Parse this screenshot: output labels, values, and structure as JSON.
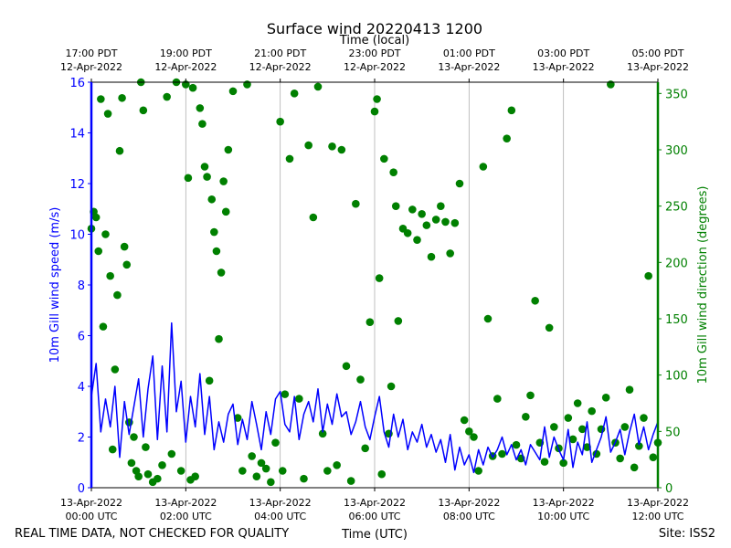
{
  "footer": {
    "left_note": "REAL TIME DATA, NOT CHECKED FOR QUALITY",
    "site": "Site: ISS2"
  },
  "colors": {
    "speed": "#0000ff",
    "direction": "#008000",
    "grid": "#b0b0b0",
    "axis": "#000000"
  },
  "chart_data": {
    "type": "line",
    "title": "Surface wind 20220413 1200",
    "xlabel": "Time (UTC)",
    "x2label": "Time (local)",
    "ylabel": "10m Gill wind speed (m/s)",
    "y2label": "10m Gill wind direction (degrees)",
    "xlim": [
      0,
      12
    ],
    "ylim": [
      0,
      16
    ],
    "y2lim": [
      0,
      360
    ],
    "grid": "vertical at major ticks",
    "x_unit": "hours since 13-Apr-2022 00:00 UTC",
    "xticks": [
      {
        "x": 0,
        "line1": "13-Apr-2022",
        "line2": "00:00 UTC"
      },
      {
        "x": 2,
        "line1": "13-Apr-2022",
        "line2": "02:00 UTC"
      },
      {
        "x": 4,
        "line1": "13-Apr-2022",
        "line2": "04:00 UTC"
      },
      {
        "x": 6,
        "line1": "13-Apr-2022",
        "line2": "06:00 UTC"
      },
      {
        "x": 8,
        "line1": "13-Apr-2022",
        "line2": "08:00 UTC"
      },
      {
        "x": 10,
        "line1": "13-Apr-2022",
        "line2": "10:00 UTC"
      },
      {
        "x": 12,
        "line1": "13-Apr-2022",
        "line2": "12:00 UTC"
      }
    ],
    "x2ticks": [
      {
        "x": 0,
        "line1": "17:00 PDT",
        "line2": "12-Apr-2022"
      },
      {
        "x": 2,
        "line1": "19:00 PDT",
        "line2": "12-Apr-2022"
      },
      {
        "x": 4,
        "line1": "21:00 PDT",
        "line2": "12-Apr-2022"
      },
      {
        "x": 6,
        "line1": "23:00 PDT",
        "line2": "12-Apr-2022"
      },
      {
        "x": 8,
        "line1": "01:00 PDT",
        "line2": "13-Apr-2022"
      },
      {
        "x": 10,
        "line1": "03:00 PDT",
        "line2": "13-Apr-2022"
      },
      {
        "x": 12,
        "line1": "05:00 PDT",
        "line2": "13-Apr-2022"
      }
    ],
    "yticks": [
      0,
      2,
      4,
      6,
      8,
      10,
      12,
      14,
      16
    ],
    "y2ticks": [
      0,
      50,
      100,
      150,
      200,
      250,
      300,
      350
    ],
    "series": [
      {
        "name": "10m Gill wind speed",
        "axis": "left",
        "style": "line",
        "x": [
          0.0,
          0.1,
          0.2,
          0.3,
          0.4,
          0.5,
          0.6,
          0.7,
          0.8,
          0.9,
          1.0,
          1.1,
          1.2,
          1.3,
          1.4,
          1.5,
          1.6,
          1.7,
          1.8,
          1.9,
          2.0,
          2.1,
          2.2,
          2.3,
          2.4,
          2.5,
          2.6,
          2.7,
          2.8,
          2.9,
          3.0,
          3.1,
          3.2,
          3.3,
          3.4,
          3.5,
          3.6,
          3.7,
          3.8,
          3.9,
          4.0,
          4.1,
          4.2,
          4.3,
          4.4,
          4.5,
          4.6,
          4.7,
          4.8,
          4.9,
          5.0,
          5.1,
          5.2,
          5.3,
          5.4,
          5.5,
          5.6,
          5.7,
          5.8,
          5.9,
          6.0,
          6.1,
          6.2,
          6.3,
          6.4,
          6.5,
          6.6,
          6.7,
          6.8,
          6.9,
          7.0,
          7.1,
          7.2,
          7.3,
          7.4,
          7.5,
          7.6,
          7.7,
          7.8,
          7.9,
          8.0,
          8.1,
          8.2,
          8.3,
          8.4,
          8.5,
          8.6,
          8.7,
          8.8,
          8.9,
          9.0,
          9.1,
          9.2,
          9.3,
          9.4,
          9.5,
          9.6,
          9.7,
          9.8,
          9.9,
          10.0,
          10.1,
          10.2,
          10.3,
          10.4,
          10.5,
          10.6,
          10.7,
          10.8,
          10.9,
          11.0,
          11.1,
          11.2,
          11.3,
          11.4,
          11.5,
          11.6,
          11.7,
          11.8,
          11.9,
          12.0
        ],
        "values": [
          3.6,
          4.9,
          2.2,
          3.5,
          2.4,
          4.0,
          1.2,
          3.4,
          2.1,
          3.2,
          4.3,
          2.0,
          3.9,
          5.2,
          1.9,
          4.8,
          2.2,
          6.5,
          3.0,
          4.2,
          1.8,
          3.6,
          2.4,
          4.5,
          2.1,
          3.6,
          1.5,
          2.6,
          1.8,
          2.9,
          3.3,
          1.7,
          2.7,
          1.9,
          3.4,
          2.5,
          1.5,
          3.0,
          2.1,
          3.5,
          3.8,
          2.5,
          2.2,
          3.6,
          1.9,
          2.9,
          3.4,
          2.6,
          3.9,
          2.2,
          3.3,
          2.5,
          3.7,
          2.8,
          3.0,
          2.1,
          2.6,
          3.4,
          2.4,
          1.9,
          2.8,
          3.6,
          2.2,
          1.6,
          2.9,
          2.0,
          2.7,
          1.5,
          2.2,
          1.8,
          2.5,
          1.6,
          2.1,
          1.4,
          1.9,
          1.0,
          2.1,
          0.7,
          1.6,
          0.9,
          1.3,
          0.6,
          1.5,
          0.9,
          1.6,
          1.2,
          1.5,
          2.0,
          1.3,
          1.7,
          1.1,
          1.5,
          0.9,
          1.7,
          1.4,
          1.1,
          2.4,
          1.2,
          2.0,
          1.5,
          1.1,
          2.3,
          0.8,
          1.8,
          1.3,
          2.6,
          1.0,
          1.5,
          2.0,
          2.8,
          1.4,
          1.8,
          2.3,
          1.3,
          2.2,
          2.9,
          1.7,
          2.4,
          1.5,
          2.1,
          2.6
        ]
      },
      {
        "name": "10m Gill wind direction",
        "axis": "right",
        "style": "points",
        "points": [
          [
            0.0,
            230
          ],
          [
            0.05,
            245
          ],
          [
            0.1,
            240
          ],
          [
            0.15,
            210
          ],
          [
            0.2,
            345
          ],
          [
            0.25,
            143
          ],
          [
            0.3,
            225
          ],
          [
            0.35,
            332
          ],
          [
            0.4,
            188
          ],
          [
            0.45,
            34
          ],
          [
            0.5,
            105
          ],
          [
            0.55,
            171
          ],
          [
            0.6,
            299
          ],
          [
            0.65,
            346
          ],
          [
            0.7,
            214
          ],
          [
            0.75,
            198
          ],
          [
            0.8,
            58
          ],
          [
            0.85,
            22
          ],
          [
            0.9,
            45
          ],
          [
            0.95,
            15
          ],
          [
            1.0,
            10
          ],
          [
            1.05,
            360
          ],
          [
            1.1,
            335
          ],
          [
            1.15,
            36
          ],
          [
            1.2,
            12
          ],
          [
            1.3,
            5
          ],
          [
            1.4,
            8
          ],
          [
            1.5,
            20
          ],
          [
            1.6,
            347
          ],
          [
            1.7,
            30
          ],
          [
            1.8,
            362
          ],
          [
            1.9,
            15
          ],
          [
            2.0,
            358
          ],
          [
            2.05,
            275
          ],
          [
            2.1,
            7
          ],
          [
            2.15,
            355
          ],
          [
            2.2,
            10
          ],
          [
            2.3,
            337
          ],
          [
            2.35,
            323
          ],
          [
            2.4,
            285
          ],
          [
            2.45,
            276
          ],
          [
            2.5,
            95
          ],
          [
            2.55,
            256
          ],
          [
            2.6,
            227
          ],
          [
            2.65,
            210
          ],
          [
            2.7,
            132
          ],
          [
            2.75,
            191
          ],
          [
            2.8,
            272
          ],
          [
            2.85,
            245
          ],
          [
            2.9,
            300
          ],
          [
            3.0,
            352
          ],
          [
            3.1,
            62
          ],
          [
            3.2,
            15
          ],
          [
            3.3,
            358
          ],
          [
            3.4,
            28
          ],
          [
            3.5,
            10
          ],
          [
            3.6,
            22
          ],
          [
            3.7,
            17
          ],
          [
            3.8,
            5
          ],
          [
            3.9,
            40
          ],
          [
            4.0,
            325
          ],
          [
            4.05,
            15
          ],
          [
            4.1,
            83
          ],
          [
            4.2,
            292
          ],
          [
            4.3,
            350
          ],
          [
            4.4,
            79
          ],
          [
            4.5,
            8
          ],
          [
            4.6,
            304
          ],
          [
            4.7,
            240
          ],
          [
            4.8,
            356
          ],
          [
            4.9,
            48
          ],
          [
            5.0,
            15
          ],
          [
            5.1,
            303
          ],
          [
            5.2,
            20
          ],
          [
            5.3,
            300
          ],
          [
            5.4,
            108
          ],
          [
            5.5,
            6
          ],
          [
            5.6,
            252
          ],
          [
            5.7,
            96
          ],
          [
            5.8,
            35
          ],
          [
            5.9,
            147
          ],
          [
            6.0,
            334
          ],
          [
            6.05,
            345
          ],
          [
            6.1,
            186
          ],
          [
            6.15,
            12
          ],
          [
            6.2,
            292
          ],
          [
            6.3,
            48
          ],
          [
            6.35,
            90
          ],
          [
            6.4,
            280
          ],
          [
            6.45,
            250
          ],
          [
            6.5,
            148
          ],
          [
            6.6,
            230
          ],
          [
            6.7,
            226
          ],
          [
            6.8,
            247
          ],
          [
            6.9,
            220
          ],
          [
            7.0,
            243
          ],
          [
            7.1,
            233
          ],
          [
            7.2,
            205
          ],
          [
            7.3,
            238
          ],
          [
            7.4,
            250
          ],
          [
            7.5,
            236
          ],
          [
            7.6,
            208
          ],
          [
            7.7,
            235
          ],
          [
            7.8,
            270
          ],
          [
            7.9,
            60
          ],
          [
            8.0,
            50
          ],
          [
            8.1,
            45
          ],
          [
            8.2,
            15
          ],
          [
            8.3,
            285
          ],
          [
            8.4,
            150
          ],
          [
            8.5,
            28
          ],
          [
            8.6,
            79
          ],
          [
            8.7,
            30
          ],
          [
            8.8,
            310
          ],
          [
            8.9,
            335
          ],
          [
            9.0,
            38
          ],
          [
            9.1,
            26
          ],
          [
            9.2,
            63
          ],
          [
            9.3,
            82
          ],
          [
            9.4,
            166
          ],
          [
            9.5,
            40
          ],
          [
            9.6,
            23
          ],
          [
            9.7,
            142
          ],
          [
            9.8,
            54
          ],
          [
            9.9,
            35
          ],
          [
            10.0,
            22
          ],
          [
            10.1,
            62
          ],
          [
            10.2,
            43
          ],
          [
            10.3,
            75
          ],
          [
            10.4,
            52
          ],
          [
            10.5,
            36
          ],
          [
            10.6,
            68
          ],
          [
            10.7,
            30
          ],
          [
            10.8,
            52
          ],
          [
            10.9,
            80
          ],
          [
            11.0,
            358
          ],
          [
            11.1,
            40
          ],
          [
            11.2,
            26
          ],
          [
            11.3,
            54
          ],
          [
            11.4,
            87
          ],
          [
            11.5,
            18
          ],
          [
            11.6,
            37
          ],
          [
            11.7,
            62
          ],
          [
            11.8,
            188
          ],
          [
            11.9,
            27
          ],
          [
            12.0,
            40
          ]
        ]
      }
    ]
  }
}
